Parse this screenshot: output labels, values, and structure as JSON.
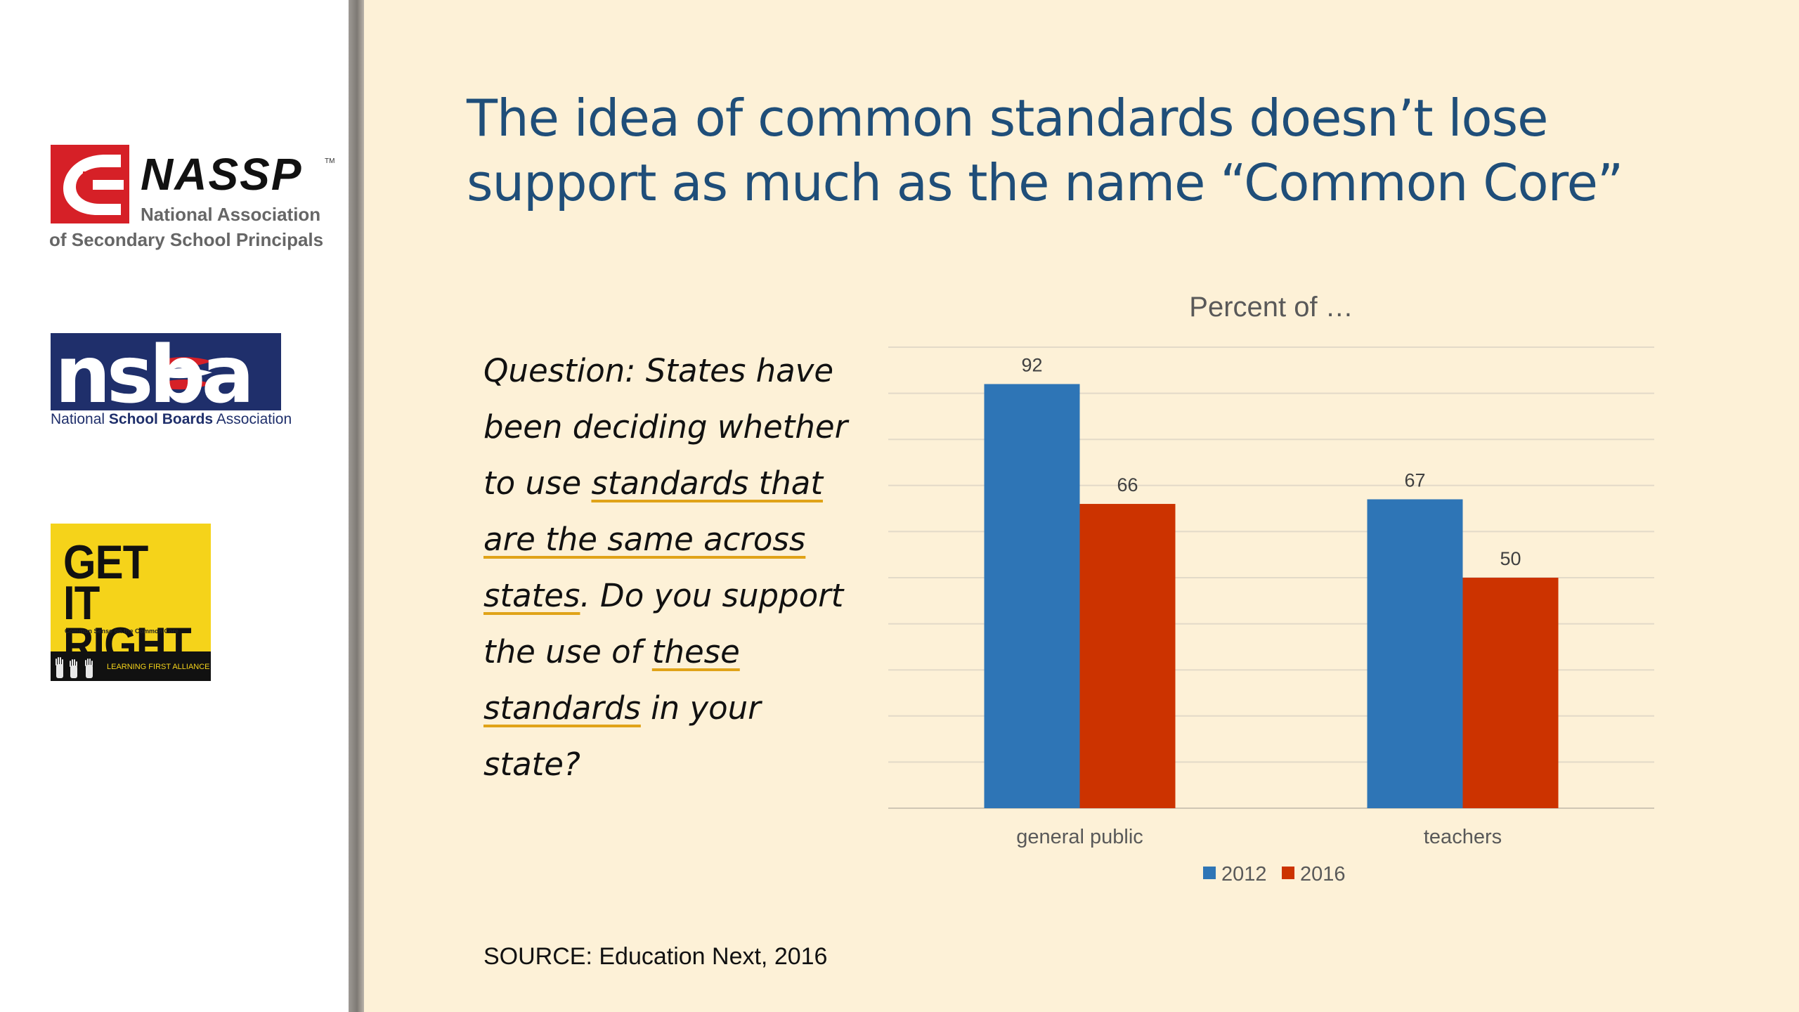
{
  "slide": {
    "title": "The idea of common standards doesn’t lose support as much as the name “Common Core”",
    "question": {
      "p1": "Question: States have been deciding whether to use ",
      "u1": "standards that are the same across states",
      "p2": ". Do you support the use of ",
      "u2": "these standards",
      "p3": " in your state?"
    },
    "source": "SOURCE: Education Next, 2016"
  },
  "logos": {
    "nassp": {
      "name": "NASSP",
      "tm": "TM",
      "line1": "National Association",
      "line2": "of Secondary School Principals"
    },
    "nsba": {
      "mark": "nsba",
      "sub_a": "National ",
      "sub_b": "School Boards",
      "sub_c": " Association"
    },
    "getitright": {
      "title_line1": "GET IT",
      "title_line2": "RIGHT",
      "tagline": "Common Sense on the Common Core",
      "band": "LEARNING FIRST ALLIANCE"
    }
  },
  "chart_data": {
    "type": "bar",
    "title": "Percent of …",
    "categories": [
      "general public",
      "teachers"
    ],
    "series": [
      {
        "name": "2012",
        "values": [
          92,
          67
        ],
        "color": "#2e75b6"
      },
      {
        "name": "2016",
        "values": [
          66,
          50
        ],
        "color": "#cc3300"
      }
    ],
    "ylim": [
      0,
      100
    ],
    "grid": true,
    "legend": "bottom",
    "data_labels": true
  }
}
